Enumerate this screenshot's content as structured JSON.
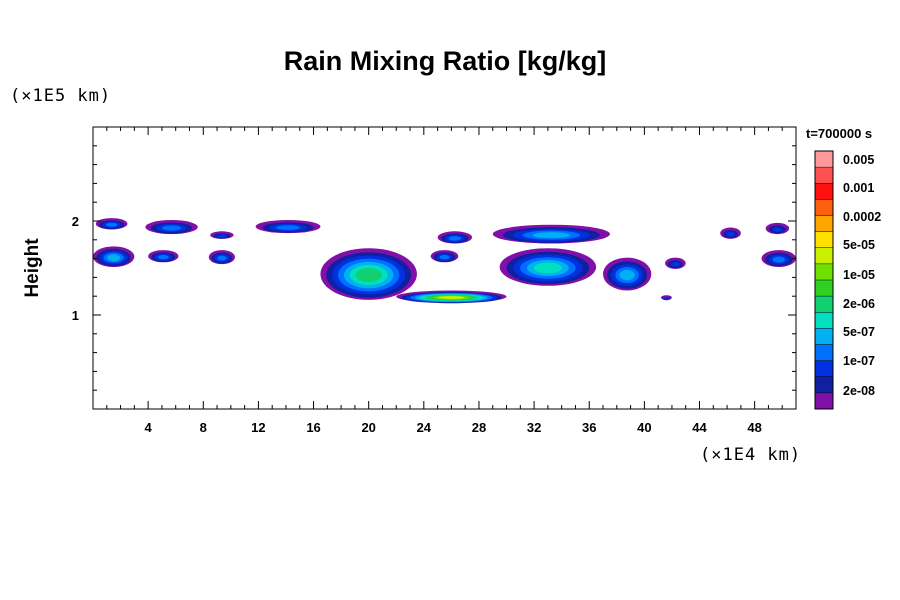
{
  "chart_data": {
    "type": "heatmap",
    "title": "Rain Mixing Ratio [kg/kg]",
    "ylabel": "Height",
    "xlabel": "",
    "x_unit": "(×1E4 km)",
    "y_unit": "(×1E5 km)",
    "timestamp": "t=700000 s",
    "xlim": [
      0,
      51
    ],
    "ylim": [
      0,
      3
    ],
    "x_ticks": [
      "4",
      "8",
      "12",
      "16",
      "20",
      "24",
      "28",
      "32",
      "36",
      "40",
      "44",
      "48"
    ],
    "x_tick_values": [
      4,
      8,
      12,
      16,
      20,
      24,
      28,
      32,
      36,
      40,
      44,
      48
    ],
    "y_ticks": [
      "1",
      "2"
    ],
    "y_tick_values": [
      1,
      2
    ],
    "colorbar": {
      "labels": [
        "0.005",
        "0.001",
        "0.0002",
        "5e-05",
        "1e-05",
        "2e-06",
        "5e-07",
        "1e-07",
        "2e-08"
      ],
      "colors": [
        "#ff9999",
        "#ff5050",
        "#ff1010",
        "#ff6010",
        "#ffa500",
        "#ffe000",
        "#c8f000",
        "#70e000",
        "#30d020",
        "#10d070",
        "#00e0c0",
        "#00b0f0",
        "#0070ff",
        "#0030e0",
        "#1020a0",
        "#8010a8"
      ]
    },
    "cells": [
      {
        "x": [
          0.2,
          2.5
        ],
        "y": [
          1.9,
          2.02
        ],
        "level": 3
      },
      {
        "x": [
          3.8,
          7.6
        ],
        "y": [
          1.85,
          2.0
        ],
        "level": 3
      },
      {
        "x": [
          8.5,
          10.2
        ],
        "y": [
          1.8,
          1.88
        ],
        "level": 2
      },
      {
        "x": [
          11.8,
          16.5
        ],
        "y": [
          1.86,
          2.0
        ],
        "level": 3
      },
      {
        "x": [
          0.0,
          3.0
        ],
        "y": [
          1.5,
          1.72
        ],
        "level": 4
      },
      {
        "x": [
          4.0,
          6.2
        ],
        "y": [
          1.55,
          1.68
        ],
        "level": 3
      },
      {
        "x": [
          8.4,
          10.3
        ],
        "y": [
          1.53,
          1.68
        ],
        "level": 3
      },
      {
        "x": [
          16.5,
          23.5
        ],
        "y": [
          1.15,
          1.7
        ],
        "level": 6
      },
      {
        "x": [
          22.0,
          30.0
        ],
        "y": [
          1.12,
          1.25
        ],
        "level": 9
      },
      {
        "x": [
          24.5,
          26.5
        ],
        "y": [
          1.55,
          1.68
        ],
        "level": 3
      },
      {
        "x": [
          25.0,
          27.5
        ],
        "y": [
          1.75,
          1.88
        ],
        "level": 3
      },
      {
        "x": [
          29.0,
          37.5
        ],
        "y": [
          1.75,
          1.95
        ],
        "level": 4
      },
      {
        "x": [
          29.5,
          36.5
        ],
        "y": [
          1.3,
          1.7
        ],
        "level": 5
      },
      {
        "x": [
          37.0,
          40.5
        ],
        "y": [
          1.25,
          1.6
        ],
        "level": 4
      },
      {
        "x": [
          41.2,
          42.0
        ],
        "y": [
          1.15,
          1.2
        ],
        "level": 2
      },
      {
        "x": [
          41.5,
          43.0
        ],
        "y": [
          1.48,
          1.6
        ],
        "level": 2
      },
      {
        "x": [
          45.5,
          47.0
        ],
        "y": [
          1.8,
          1.92
        ],
        "level": 2
      },
      {
        "x": [
          48.5,
          51.0
        ],
        "y": [
          1.5,
          1.68
        ],
        "level": 3
      },
      {
        "x": [
          48.8,
          50.5
        ],
        "y": [
          1.85,
          1.97
        ],
        "level": 2
      }
    ]
  }
}
